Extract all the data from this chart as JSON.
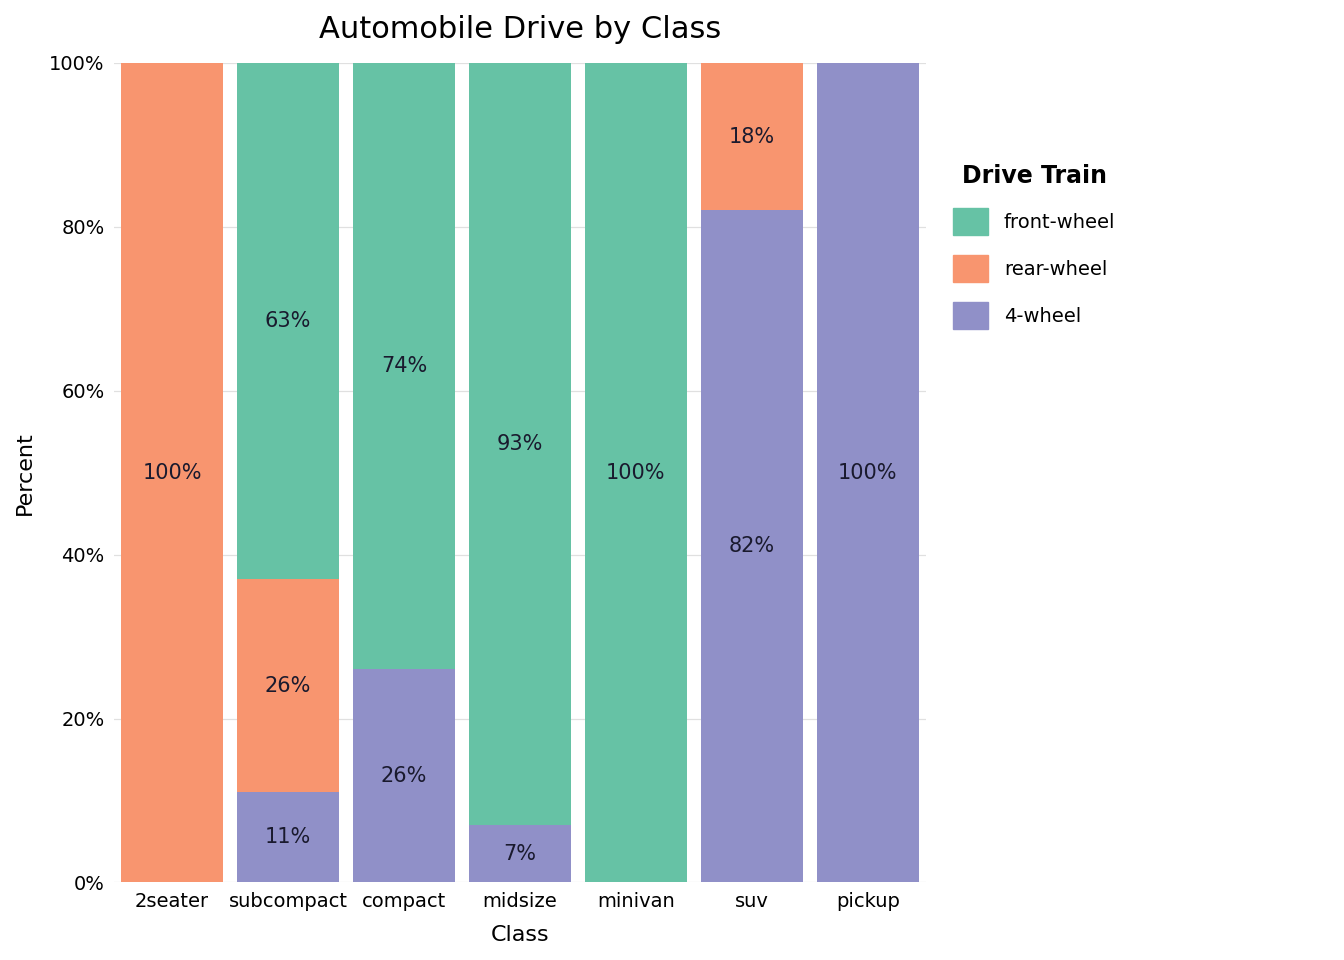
{
  "categories": [
    "2seater",
    "subcompact",
    "compact",
    "midsize",
    "minivan",
    "suv",
    "pickup"
  ],
  "front_wheel": [
    0,
    63,
    74,
    93,
    100,
    0,
    0
  ],
  "rear_wheel": [
    100,
    26,
    0,
    0,
    0,
    18,
    0
  ],
  "four_wheel": [
    0,
    11,
    26,
    7,
    0,
    82,
    100
  ],
  "front_wheel_labels": [
    "",
    "63%",
    "74%",
    "93%",
    "100%",
    "",
    ""
  ],
  "rear_wheel_labels": [
    "100%",
    "26%",
    "",
    "",
    "",
    "18%",
    ""
  ],
  "four_wheel_labels": [
    "",
    "11%",
    "26%",
    "7%",
    "",
    "82%",
    "100%"
  ],
  "color_front": "#66C2A5",
  "color_rear": "#F8956F",
  "color_4wheel": "#9090C8",
  "title": "Automobile Drive by Class",
  "xlabel": "Class",
  "ylabel": "Percent",
  "legend_title": "Drive Train",
  "legend_labels": [
    "front-wheel",
    "rear-wheel",
    "4-wheel"
  ],
  "background_color": "#FFFFFF",
  "plot_bg_color": "#FFFFFF",
  "grid_color": "#E0E0E0",
  "bar_width": 0.88,
  "yticks": [
    0,
    20,
    40,
    60,
    80,
    100
  ],
  "ytick_labels": [
    "0%",
    "20%",
    "40%",
    "60%",
    "80%",
    "100%"
  ],
  "title_fontsize": 22,
  "axis_label_fontsize": 16,
  "tick_fontsize": 14,
  "legend_fontsize": 14,
  "label_fontsize": 15
}
